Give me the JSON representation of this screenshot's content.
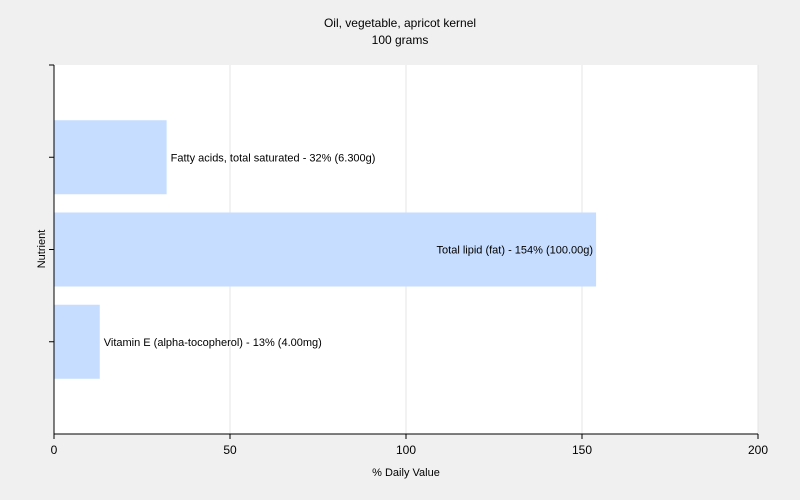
{
  "chart_data": {
    "type": "bar",
    "orientation": "horizontal",
    "title": "Oil, vegetable, apricot kernel",
    "subtitle": "100 grams",
    "xlabel": "% Daily Value",
    "ylabel": "Nutrient",
    "xlim": [
      0,
      200
    ],
    "xticks": [
      0,
      50,
      100,
      150,
      200
    ],
    "grid": true,
    "bar_color": "#c6ddff",
    "categories": [
      "Fatty acids, total saturated",
      "Total lipid (fat)",
      "Vitamin E (alpha-tocopherol)"
    ],
    "values": [
      32,
      154,
      13
    ],
    "data_labels": [
      "Fatty acids, total saturated - 32% (6.300g)",
      "Total lipid (fat) - 154% (100.00g)",
      "Vitamin E (alpha-tocopherol) - 13% (4.00mg)"
    ]
  }
}
